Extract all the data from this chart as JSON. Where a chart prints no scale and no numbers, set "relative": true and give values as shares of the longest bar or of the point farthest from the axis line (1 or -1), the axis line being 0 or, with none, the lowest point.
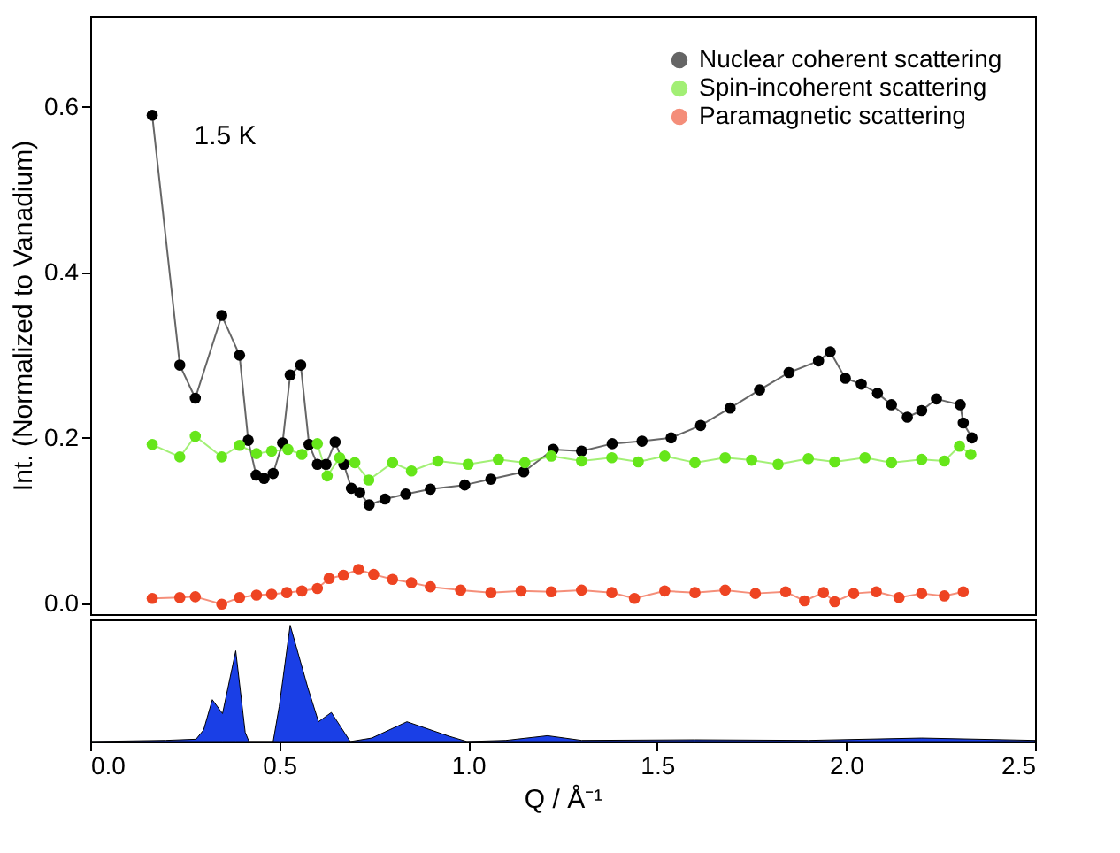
{
  "chart_data": [
    {
      "type": "line",
      "ylabel": "Int. (Normalized to Vanadium)",
      "xlim": [
        0,
        2.5
      ],
      "ylim": [
        -0.013,
        0.71
      ],
      "yticks": [
        {
          "value": 0,
          "label": "0.0"
        },
        {
          "value": 0.2,
          "label": "0.2"
        },
        {
          "value": 0.4,
          "label": "0.4"
        },
        {
          "value": 0.6,
          "label": "0.6"
        }
      ],
      "tick_labels": "y",
      "legend": "top right",
      "marker": "circle",
      "line_style": "solid",
      "grid": false,
      "annotations": [
        "1.5 K"
      ],
      "series": [
        {
          "name": "Nuclear coherent scattering",
          "color": "#000000",
          "x": [
            0.164,
            0.237,
            0.278,
            0.348,
            0.395,
            0.418,
            0.439,
            0.46,
            0.484,
            0.509,
            0.529,
            0.557,
            0.579,
            0.601,
            0.624,
            0.648,
            0.671,
            0.691,
            0.713,
            0.738,
            0.78,
            0.835,
            0.9,
            0.991,
            1.06,
            1.147,
            1.225,
            1.3,
            1.381,
            1.46,
            1.537,
            1.615,
            1.693,
            1.771,
            1.849,
            1.927,
            1.958,
            1.998,
            2.04,
            2.083,
            2.12,
            2.162,
            2.2,
            2.239,
            2.302,
            2.31,
            2.333
          ],
          "values": [
            0.59,
            0.288,
            0.248,
            0.348,
            0.3,
            0.197,
            0.155,
            0.151,
            0.157,
            0.194,
            0.276,
            0.288,
            0.192,
            0.168,
            0.168,
            0.195,
            0.168,
            0.139,
            0.134,
            0.119,
            0.126,
            0.132,
            0.138,
            0.143,
            0.15,
            0.159,
            0.186,
            0.184,
            0.193,
            0.196,
            0.2,
            0.215,
            0.236,
            0.258,
            0.279,
            0.293,
            0.304,
            0.272,
            0.265,
            0.254,
            0.24,
            0.225,
            0.233,
            0.247,
            0.24,
            0.218,
            0.2
          ]
        },
        {
          "name": "Spin-incoherent scattering",
          "color": "#66e61a",
          "x": [
            0.164,
            0.237,
            0.278,
            0.348,
            0.395,
            0.44,
            0.48,
            0.523,
            0.56,
            0.601,
            0.627,
            0.66,
            0.7,
            0.737,
            0.8,
            0.85,
            0.92,
            1.0,
            1.08,
            1.15,
            1.22,
            1.3,
            1.38,
            1.45,
            1.52,
            1.6,
            1.68,
            1.75,
            1.82,
            1.9,
            1.97,
            2.05,
            2.12,
            2.2,
            2.26,
            2.3,
            2.33
          ],
          "values": [
            0.192,
            0.177,
            0.202,
            0.177,
            0.191,
            0.181,
            0.184,
            0.186,
            0.18,
            0.193,
            0.154,
            0.176,
            0.17,
            0.149,
            0.17,
            0.16,
            0.172,
            0.168,
            0.174,
            0.17,
            0.178,
            0.172,
            0.176,
            0.171,
            0.178,
            0.17,
            0.176,
            0.173,
            0.168,
            0.175,
            0.171,
            0.176,
            0.17,
            0.174,
            0.172,
            0.19,
            0.18
          ]
        },
        {
          "name": "Paramagnetic scattering",
          "color": "#ee4422",
          "x": [
            0.164,
            0.237,
            0.278,
            0.348,
            0.395,
            0.44,
            0.48,
            0.52,
            0.56,
            0.601,
            0.632,
            0.67,
            0.71,
            0.75,
            0.8,
            0.85,
            0.9,
            0.98,
            1.06,
            1.14,
            1.22,
            1.3,
            1.38,
            1.44,
            1.52,
            1.6,
            1.68,
            1.76,
            1.84,
            1.89,
            1.94,
            1.97,
            2.02,
            2.08,
            2.14,
            2.2,
            2.26,
            2.31
          ],
          "values": [
            0.006,
            0.007,
            0.008,
            -0.001,
            0.007,
            0.01,
            0.011,
            0.013,
            0.015,
            0.018,
            0.03,
            0.034,
            0.041,
            0.035,
            0.029,
            0.025,
            0.02,
            0.016,
            0.013,
            0.015,
            0.014,
            0.016,
            0.013,
            0.006,
            0.015,
            0.013,
            0.016,
            0.012,
            0.014,
            0.003,
            0.013,
            0.002,
            0.012,
            0.014,
            0.007,
            0.012,
            0.009,
            0.014
          ]
        }
      ]
    },
    {
      "type": "area",
      "relative": true,
      "xlabel": "Q / Å⁻¹",
      "xlim": [
        0,
        2.5
      ],
      "tick_labels": "x",
      "legend": false,
      "grid": false,
      "xticks": [
        {
          "value": 0,
          "label": "0.0"
        },
        {
          "value": 0.5,
          "label": "0.5"
        },
        {
          "value": 1,
          "label": "1.0"
        },
        {
          "value": 1.5,
          "label": "1.5"
        },
        {
          "value": 2,
          "label": "2.0"
        },
        {
          "value": 2.5,
          "label": "2.5"
        }
      ],
      "series": [
        {
          "color": "#1a3fe6",
          "x": [
            0.0,
            0.2,
            0.28,
            0.3,
            0.323,
            0.35,
            0.385,
            0.41,
            0.42,
            0.484,
            0.5,
            0.529,
            0.576,
            0.604,
            0.638,
            0.688,
            0.745,
            0.838,
            0.95,
            0.997,
            1.1,
            1.21,
            1.3,
            1.6,
            1.9,
            2.2,
            2.5
          ],
          "values": [
            0,
            0.01,
            0.02,
            0.1,
            0.36,
            0.24,
            0.78,
            0.08,
            0,
            0,
            0.3,
            1.0,
            0.46,
            0.17,
            0.25,
            0,
            0.03,
            0.17,
            0.045,
            0,
            0.01,
            0.05,
            0.01,
            0.015,
            0.01,
            0.03,
            0.01
          ]
        }
      ]
    }
  ]
}
